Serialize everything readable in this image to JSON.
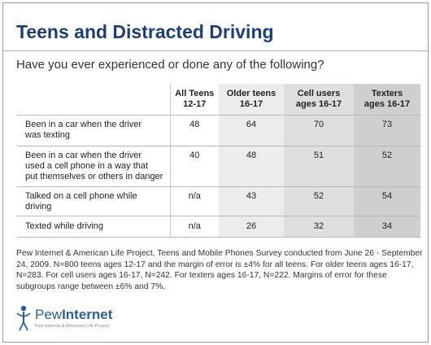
{
  "title": "Teens and Distracted Driving",
  "subtitle": "Have you ever experienced or done any of the following?",
  "columns": [
    {
      "line1": "All Teens",
      "line2": "12-17"
    },
    {
      "line1": "Older teens",
      "line2": "16-17"
    },
    {
      "line1": "Cell users",
      "line2": "ages 16-17"
    },
    {
      "line1": "Texters",
      "line2": "ages 16-17"
    }
  ],
  "rows": [
    {
      "lines": [
        "Been in a car when the driver",
        "was texting"
      ],
      "values": [
        "48",
        "64",
        "70",
        "73"
      ]
    },
    {
      "lines": [
        "Been in a car when the driver",
        "used a cell phone in a way that",
        "put themselves or others in danger"
      ],
      "values": [
        "40",
        "48",
        "51",
        "52"
      ]
    },
    {
      "lines": [
        "Talked on a cell phone while",
        "driving"
      ],
      "values": [
        "n/a",
        "43",
        "52",
        "54"
      ]
    },
    {
      "lines": [
        "Texted while driving"
      ],
      "values": [
        "n/a",
        "26",
        "32",
        "34"
      ]
    }
  ],
  "chart_data": {
    "type": "table",
    "title": "Teens and Distracted Driving",
    "subtitle": "Have you ever experienced or done any of the following?",
    "categories": [
      "All Teens 12-17",
      "Older teens 16-17",
      "Cell users ages 16-17",
      "Texters ages 16-17"
    ],
    "series": [
      {
        "name": "Been in a car when the driver was texting",
        "values": [
          48,
          64,
          70,
          73
        ]
      },
      {
        "name": "Been in a car when the driver used a cell phone in a way that put themselves or others in danger",
        "values": [
          40,
          48,
          51,
          52
        ]
      },
      {
        "name": "Talked on a cell phone while driving",
        "values": [
          null,
          43,
          52,
          54
        ]
      },
      {
        "name": "Texted while driving",
        "values": [
          null,
          26,
          32,
          34
        ]
      }
    ]
  },
  "source": "Pew Internet & American Life Project, Teens and Mobile Phones Survey conducted from June 26 - September 24, 2009. N=800 teens ages 12-17 and the margin of error is ±4% for all teens. For older teens ages 16-17, N=283. For cell users ages 16-17, N=242. For texters ages 16-17, N=222. Margins of error for these subgroups range between ±6% and 7%.",
  "logo": {
    "word1": "Pew",
    "word2": "Internet",
    "tagline": "Pew Internet & American Life Project"
  },
  "colors": {
    "title": "#1f3f73",
    "logo": "#2d5f92",
    "shade1": "#ececec",
    "shade2": "#dedede",
    "shade3": "#cfcfcf"
  }
}
